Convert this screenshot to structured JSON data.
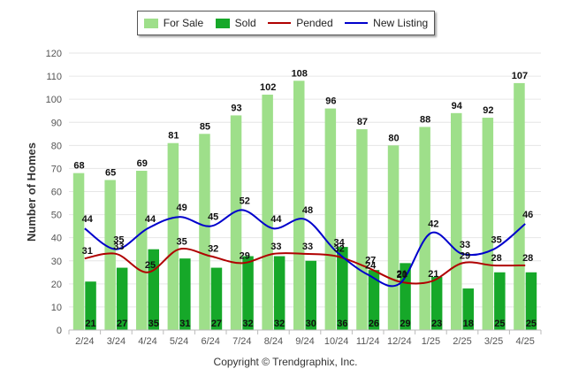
{
  "chart_data": {
    "type": "bar",
    "ylabel": "Number of Homes",
    "xlabel": "",
    "ylim": [
      0,
      120
    ],
    "ytick_step": 10,
    "grid": true,
    "legend_placement": "top-center",
    "categories": [
      "2/24",
      "3/24",
      "4/24",
      "5/24",
      "6/24",
      "7/24",
      "8/24",
      "9/24",
      "10/24",
      "11/24",
      "12/24",
      "1/25",
      "2/25",
      "3/25",
      "4/25"
    ],
    "series": [
      {
        "name": "For Sale",
        "kind": "bar",
        "color": "#9edf8a",
        "values": [
          68,
          65,
          69,
          81,
          85,
          93,
          102,
          108,
          96,
          87,
          80,
          88,
          94,
          92,
          107
        ]
      },
      {
        "name": "Sold",
        "kind": "bar",
        "color": "#16a829",
        "values": [
          21,
          27,
          35,
          31,
          27,
          32,
          32,
          30,
          36,
          26,
          29,
          23,
          18,
          25,
          25
        ]
      },
      {
        "name": "Pended",
        "kind": "line",
        "color": "#b00000",
        "values": [
          31,
          33,
          25,
          35,
          32,
          29,
          33,
          33,
          32,
          27,
          21,
          21,
          29,
          28,
          28
        ]
      },
      {
        "name": "New Listing",
        "kind": "line",
        "color": "#0000cc",
        "values": [
          44,
          35,
          44,
          49,
          45,
          52,
          44,
          48,
          34,
          24,
          20,
          42,
          33,
          35,
          46
        ]
      }
    ]
  },
  "credit": "Copyright © Trendgraphix, Inc."
}
